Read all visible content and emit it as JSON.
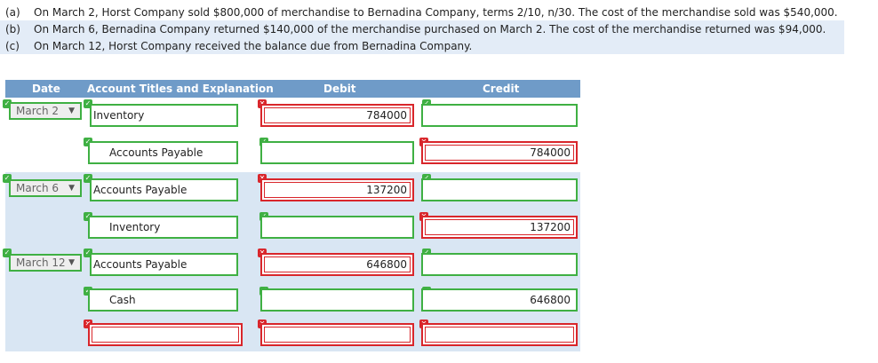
{
  "problem": [
    {
      "letter": "(a)",
      "text": "On March 2, Horst Company sold $800,000 of merchandise to Bernadina Company, terms 2/10, n/30. The cost of the merchandise sold was $540,000."
    },
    {
      "letter": "(b)",
      "text": "On March 6, Bernadina Company returned $140,000 of the merchandise purchased on March 2. The cost of the merchandise returned was $94,000."
    },
    {
      "letter": "(c)",
      "text": "On March 12, Horst Company received the balance due from Bernadina Company."
    }
  ],
  "table": {
    "headers": {
      "date": "Date",
      "account": "Account Titles and Explanation",
      "debit": "Debit",
      "credit": "Credit"
    }
  },
  "entries": [
    {
      "date": "March 2",
      "lines": [
        {
          "account": "Inventory",
          "debit": "784000",
          "credit": ""
        },
        {
          "account": "Accounts Payable",
          "debit": "",
          "credit": "784000"
        }
      ]
    },
    {
      "date": "March 6",
      "lines": [
        {
          "account": "Accounts Payable",
          "debit": "137200",
          "credit": ""
        },
        {
          "account": "Inventory",
          "debit": "",
          "credit": "137200"
        }
      ]
    },
    {
      "date": "March 12",
      "lines": [
        {
          "account": "Accounts Payable",
          "debit": "646800",
          "credit": ""
        },
        {
          "account": "Cash",
          "debit": "",
          "credit": "646800"
        },
        {
          "account": "",
          "debit": "",
          "credit": ""
        }
      ]
    }
  ],
  "icons": {
    "correct": "check-badge-icon",
    "incorrect": "x-badge-icon",
    "dropdown": "dropdown-arrow-icon"
  },
  "colors": {
    "header": "#6f9bc8",
    "row_shade": "#d9e6f3",
    "correct": "#3fb043",
    "incorrect": "#d9262b",
    "problem_shade": "#e3ecf7"
  }
}
